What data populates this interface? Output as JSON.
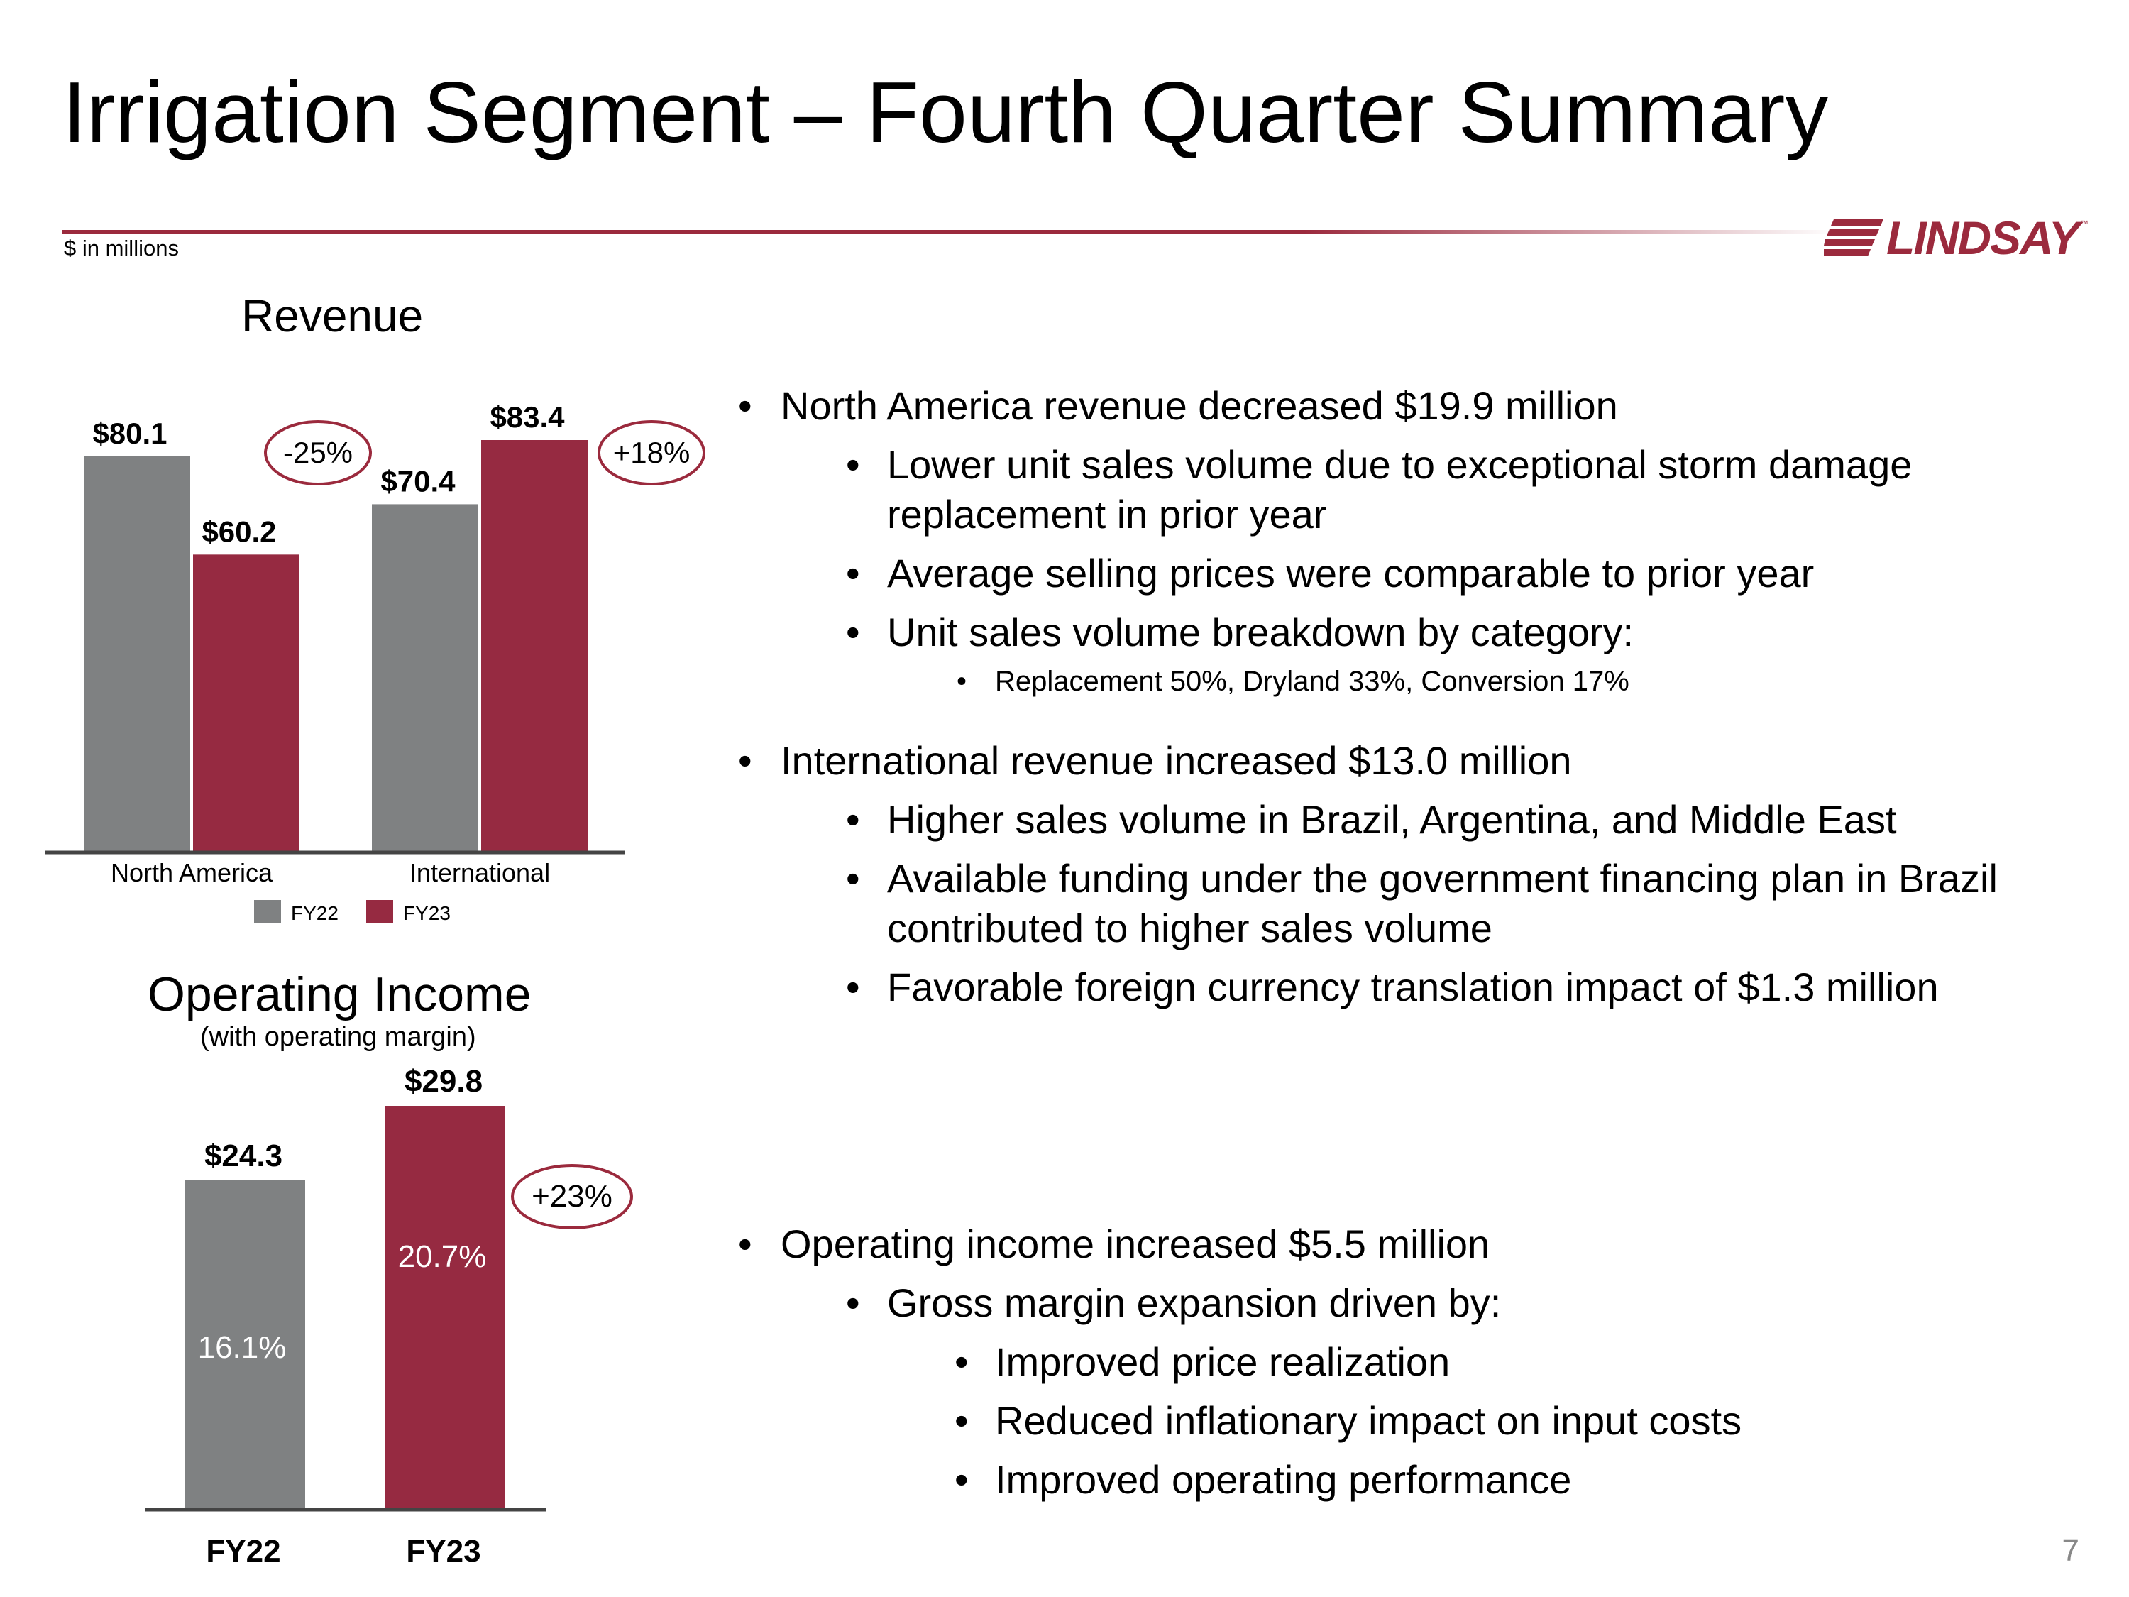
{
  "slide": {
    "title": "Irrigation Segment – Fourth Quarter Summary",
    "units_note": "$ in millions",
    "logo_text": "LINDSAY",
    "logo_tm": "™",
    "page_number": "7"
  },
  "colors": {
    "fy22": "#7f8182",
    "fy23": "#962a41",
    "accent": "#9b2a3d"
  },
  "chart_data": [
    {
      "type": "bar",
      "title": "Revenue",
      "categories": [
        "North America",
        "International"
      ],
      "series": [
        {
          "name": "FY22",
          "values": [
            80.1,
            70.4
          ],
          "labels": [
            "$80.1",
            "$70.4"
          ]
        },
        {
          "name": "FY23",
          "values": [
            60.2,
            83.4
          ],
          "labels": [
            "$60.2",
            "$83.4"
          ]
        }
      ],
      "change_labels": [
        "-25%",
        "+18%"
      ],
      "legend": [
        "FY22",
        "FY23"
      ],
      "ylim": [
        0,
        83.4
      ]
    },
    {
      "type": "bar",
      "title": "Operating Income",
      "subtitle": "(with operating margin)",
      "categories": [
        "FY22",
        "FY23"
      ],
      "values": [
        24.3,
        29.8
      ],
      "labels": [
        "$24.3",
        "$29.8"
      ],
      "margins": [
        "16.1%",
        "20.7%"
      ],
      "change_label": "+23%",
      "ylim": [
        0,
        29.8
      ]
    }
  ],
  "bullets": {
    "north_america": {
      "head": "North America revenue decreased $19.9 million",
      "sub1_line1": "Lower unit sales volume due to exceptional storm damage",
      "sub1_line2": "replacement in prior year",
      "sub2": "Average selling prices were comparable to prior year",
      "sub3": "Unit sales volume breakdown by category:",
      "sub3_detail": "Replacement 50%, Dryland 33%, Conversion 17%"
    },
    "international": {
      "head": "International revenue increased $13.0 million",
      "sub1": "Higher sales volume in Brazil, Argentina, and Middle East",
      "sub2_line1": "Available funding under the government financing plan in Brazil",
      "sub2_line2": "contributed to higher sales volume",
      "sub3": "Favorable foreign currency translation impact of $1.3 million"
    },
    "operating": {
      "head": "Operating income increased $5.5 million",
      "sub1": "Gross margin expansion driven by:",
      "d1": "Improved price realization",
      "d2": "Reduced inflationary impact on input costs",
      "d3": "Improved operating performance"
    },
    "bullet_char": "•"
  }
}
